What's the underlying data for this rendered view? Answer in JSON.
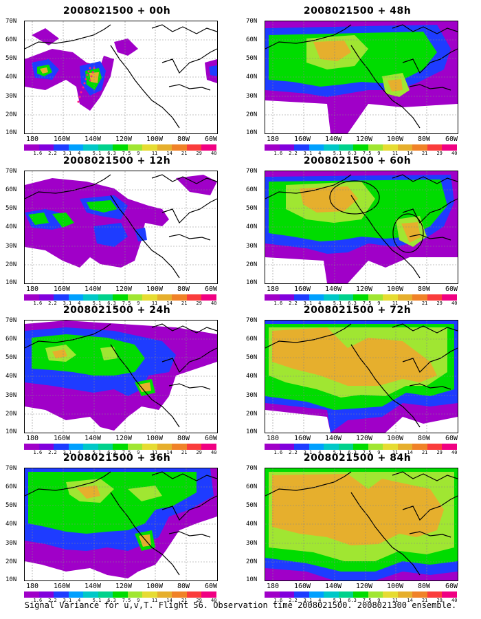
{
  "caption": "Signal Variance for u,v,T. Flight 56. Observation time 2008021500. 2008021300 ensemble.",
  "panels": [
    {
      "title": "2008021500 + 00h"
    },
    {
      "title": "2008021500 + 12h"
    },
    {
      "title": "2008021500 + 24h"
    },
    {
      "title": "2008021500 + 36h"
    },
    {
      "title": "2008021500 + 48h"
    },
    {
      "title": "2008021500 + 60h"
    },
    {
      "title": "2008021500 + 72h"
    },
    {
      "title": "2008021500 + 84h"
    }
  ],
  "lat_labels": [
    "70N",
    "60N",
    "50N",
    "40N",
    "30N",
    "20N",
    "10N"
  ],
  "lon_labels": [
    "180",
    "160W",
    "140W",
    "120W",
    "100W",
    "80W",
    "60W"
  ],
  "colorbar": {
    "labels": [
      "1.6",
      "2.2",
      "3.1",
      "4",
      "5.1",
      "6.3",
      "7.5",
      "9",
      "11",
      "14",
      "21",
      "29",
      "40"
    ],
    "colors": [
      "#a000c8",
      "#8200dc",
      "#1e3cff",
      "#00a0ff",
      "#00c8c8",
      "#00d28c",
      "#00dc00",
      "#a0e632",
      "#e6dc32",
      "#e6af2d",
      "#f08228",
      "#fa3c3c",
      "#f00082"
    ]
  },
  "map_extent": {
    "lon": [
      175,
      300
    ],
    "lat": [
      10,
      70
    ]
  }
}
